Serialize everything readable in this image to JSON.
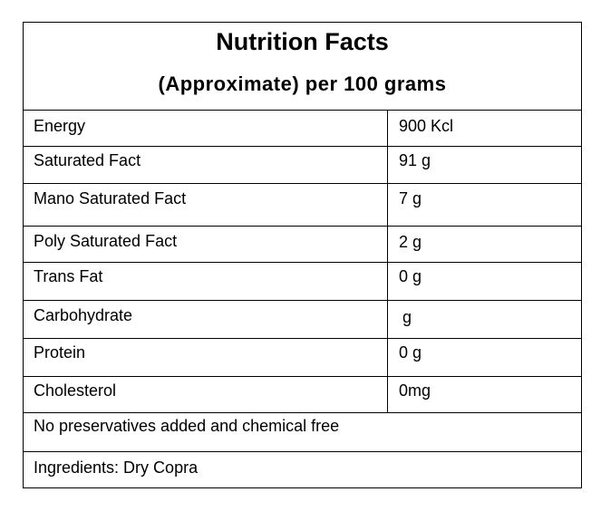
{
  "panel": {
    "title": "Nutrition Facts",
    "subtitle": "(Approximate) per 100 grams"
  },
  "rows": [
    {
      "name": "Energy",
      "value": "900 Kcl"
    },
    {
      "name": "Saturated Fact",
      "value": "91 g"
    },
    {
      "name": "Mano Saturated Fact",
      "value": "7 g"
    },
    {
      "name": "Poly Saturated Fact",
      "value": "2 g"
    },
    {
      "name": "Trans Fat",
      "value": "0 g"
    },
    {
      "name": "Carbohydrate",
      "value": "g"
    },
    {
      "name": "Protein",
      "value": "0 g"
    },
    {
      "name": "Cholesterol",
      "value": "0mg"
    }
  ],
  "notes": {
    "preservatives": "No preservatives added and chemical free",
    "ingredients": "Ingredients: Dry Copra"
  }
}
